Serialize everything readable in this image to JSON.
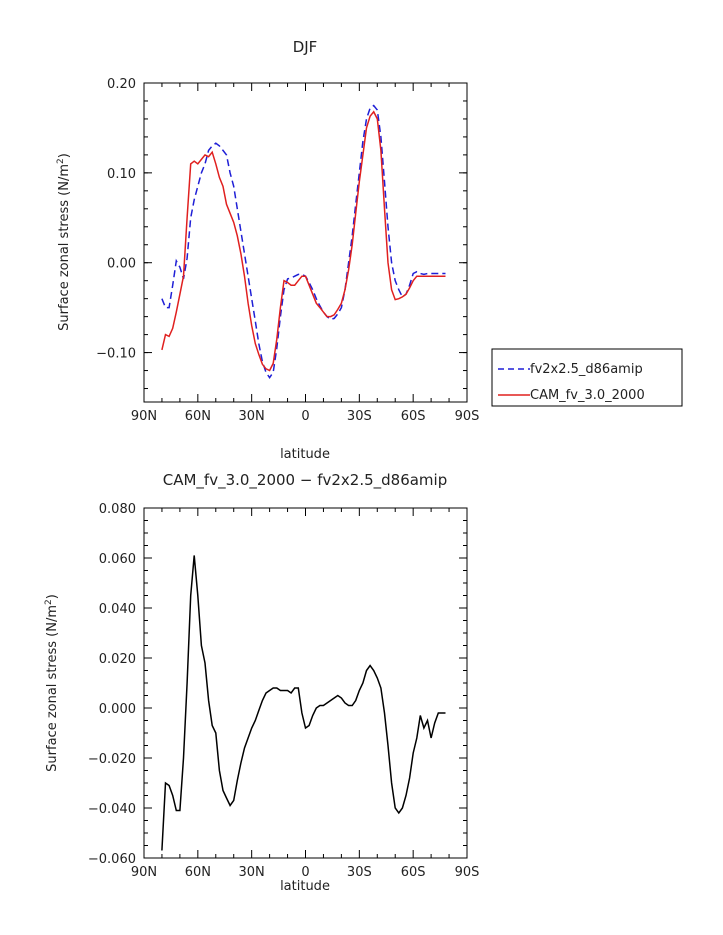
{
  "chart_data": [
    {
      "type": "line",
      "title": "DJF",
      "xlabel": "latitude",
      "ylabel": "Surface zonal stress (N/m",
      "ylabel_sup": "2",
      "ylabel_end": ")",
      "xlim": [
        90,
        -90
      ],
      "ylim": [
        -0.155,
        0.2
      ],
      "x_ticks": [
        {
          "value": 90,
          "label": "90N"
        },
        {
          "value": 60,
          "label": "60N"
        },
        {
          "value": 30,
          "label": "30N"
        },
        {
          "value": 0,
          "label": "0"
        },
        {
          "value": -30,
          "label": "30S"
        },
        {
          "value": -60,
          "label": "60S"
        },
        {
          "value": -90,
          "label": "90S"
        }
      ],
      "y_ticks": [
        {
          "value": 0.2,
          "label": "0.20"
        },
        {
          "value": 0.1,
          "label": "0.10"
        },
        {
          "value": 0.0,
          "label": "0.00"
        },
        {
          "value": -0.1,
          "label": "−0.10"
        }
      ],
      "legend_position": "right",
      "series": [
        {
          "name": "fv2x2.5_d86amip",
          "color": "#1f1fd6",
          "style": "dashed",
          "x": [
            80,
            78,
            76,
            74,
            72,
            70,
            68,
            66,
            64,
            62,
            60,
            58,
            56,
            54,
            52,
            50,
            48,
            46,
            44,
            42,
            40,
            38,
            36,
            34,
            32,
            30,
            28,
            26,
            24,
            22,
            20,
            18,
            16,
            14,
            12,
            10,
            8,
            6,
            4,
            2,
            0,
            -2,
            -4,
            -6,
            -8,
            -10,
            -12,
            -14,
            -16,
            -18,
            -20,
            -22,
            -24,
            -26,
            -28,
            -30,
            -32,
            -34,
            -36,
            -38,
            -40,
            -42,
            -44,
            -46,
            -48,
            -50,
            -52,
            -54,
            -56,
            -58,
            -60,
            -62,
            -64,
            -66,
            -68,
            -70,
            -72,
            -74,
            -76,
            -78
          ],
          "y": [
            -0.04,
            -0.05,
            -0.05,
            -0.025,
            0.002,
            -0.005,
            -0.018,
            0.005,
            0.05,
            0.07,
            0.085,
            0.1,
            0.11,
            0.125,
            0.13,
            0.133,
            0.13,
            0.125,
            0.12,
            0.1,
            0.085,
            0.06,
            0.035,
            0.01,
            -0.015,
            -0.04,
            -0.065,
            -0.09,
            -0.11,
            -0.122,
            -0.128,
            -0.122,
            -0.095,
            -0.06,
            -0.03,
            -0.018,
            -0.017,
            -0.015,
            -0.013,
            -0.013,
            -0.015,
            -0.022,
            -0.03,
            -0.04,
            -0.048,
            -0.055,
            -0.06,
            -0.063,
            -0.062,
            -0.057,
            -0.05,
            -0.03,
            0.0,
            0.03,
            0.065,
            0.1,
            0.135,
            0.16,
            0.172,
            0.175,
            0.17,
            0.14,
            0.09,
            0.04,
            0.0,
            -0.02,
            -0.03,
            -0.038,
            -0.035,
            -0.025,
            -0.012,
            -0.01,
            -0.012,
            -0.013,
            -0.012,
            -0.012,
            -0.012,
            -0.012,
            -0.012,
            -0.012
          ],
          "x_range": [
            80,
            -78
          ]
        },
        {
          "name": "CAM_fv_3.0_2000",
          "color": "#e0201f",
          "style": "solid",
          "x": [
            80,
            78,
            76,
            74,
            72,
            70,
            68,
            66,
            64,
            62,
            60,
            58,
            56,
            54,
            52,
            50,
            48,
            46,
            44,
            42,
            40,
            38,
            36,
            34,
            32,
            30,
            28,
            26,
            24,
            22,
            20,
            18,
            16,
            14,
            12,
            10,
            8,
            6,
            4,
            2,
            0,
            -2,
            -4,
            -6,
            -8,
            -10,
            -12,
            -14,
            -16,
            -18,
            -20,
            -22,
            -24,
            -26,
            -28,
            -30,
            -32,
            -34,
            -36,
            -38,
            -40,
            -42,
            -44,
            -46,
            -48,
            -50,
            -52,
            -54,
            -56,
            -58,
            -60,
            -62,
            -64,
            -66,
            -68,
            -70,
            -72,
            -74,
            -76,
            -78
          ],
          "y": [
            -0.097,
            -0.08,
            -0.082,
            -0.073,
            -0.055,
            -0.035,
            -0.015,
            0.05,
            0.11,
            0.113,
            0.11,
            0.115,
            0.12,
            0.118,
            0.123,
            0.11,
            0.095,
            0.085,
            0.065,
            0.055,
            0.045,
            0.03,
            0.01,
            -0.015,
            -0.045,
            -0.07,
            -0.09,
            -0.102,
            -0.113,
            -0.118,
            -0.12,
            -0.112,
            -0.085,
            -0.05,
            -0.02,
            -0.022,
            -0.025,
            -0.025,
            -0.02,
            -0.015,
            -0.015,
            -0.025,
            -0.035,
            -0.045,
            -0.05,
            -0.055,
            -0.06,
            -0.06,
            -0.058,
            -0.052,
            -0.045,
            -0.03,
            -0.008,
            0.02,
            0.055,
            0.09,
            0.12,
            0.15,
            0.163,
            0.168,
            0.16,
            0.125,
            0.06,
            0.0,
            -0.03,
            -0.041,
            -0.04,
            -0.038,
            -0.035,
            -0.028,
            -0.02,
            -0.015,
            -0.015,
            -0.015,
            -0.015,
            -0.015,
            -0.015,
            -0.015,
            -0.015,
            -0.015
          ]
        }
      ]
    },
    {
      "type": "line",
      "title": "CAM_fv_3.0_2000 − fv2x2.5_d86amip",
      "xlabel": "latitude",
      "ylabel": "Surface zonal stress (N/m",
      "ylabel_sup": "2",
      "ylabel_end": ")",
      "xlim": [
        90,
        -90
      ],
      "ylim": [
        -0.06,
        0.08
      ],
      "x_ticks": [
        {
          "value": 90,
          "label": "90N"
        },
        {
          "value": 60,
          "label": "60N"
        },
        {
          "value": 30,
          "label": "30N"
        },
        {
          "value": 0,
          "label": "0"
        },
        {
          "value": -30,
          "label": "30S"
        },
        {
          "value": -60,
          "label": "60S"
        },
        {
          "value": -90,
          "label": "90S"
        }
      ],
      "y_ticks": [
        {
          "value": 0.08,
          "label": "0.080"
        },
        {
          "value": 0.06,
          "label": "0.060"
        },
        {
          "value": 0.04,
          "label": "0.040"
        },
        {
          "value": 0.02,
          "label": "0.020"
        },
        {
          "value": 0.0,
          "label": "0.000"
        },
        {
          "value": -0.02,
          "label": "−0.020"
        },
        {
          "value": -0.04,
          "label": "−0.040"
        },
        {
          "value": -0.06,
          "label": "−0.060"
        }
      ],
      "series": [
        {
          "color": "#000000",
          "style": "solid",
          "x": [
            80,
            78,
            76,
            74,
            72,
            70,
            68,
            66,
            64,
            62,
            60,
            58,
            56,
            54,
            52,
            50,
            48,
            46,
            44,
            42,
            40,
            38,
            36,
            34,
            32,
            30,
            28,
            26,
            24,
            22,
            20,
            18,
            16,
            14,
            12,
            10,
            8,
            6,
            4,
            2,
            0,
            -2,
            -4,
            -6,
            -8,
            -10,
            -12,
            -14,
            -16,
            -18,
            -20,
            -22,
            -24,
            -26,
            -28,
            -30,
            -32,
            -34,
            -36,
            -38,
            -40,
            -42,
            -44,
            -46,
            -48,
            -50,
            -52,
            -54,
            -56,
            -58,
            -60,
            -62,
            -64,
            -66,
            -68,
            -70,
            -72,
            -74,
            -76,
            -78
          ],
          "y": [
            -0.057,
            -0.03,
            -0.031,
            -0.035,
            -0.041,
            -0.041,
            -0.02,
            0.01,
            0.045,
            0.061,
            0.045,
            0.025,
            0.018,
            0.003,
            -0.007,
            -0.01,
            -0.025,
            -0.033,
            -0.036,
            -0.039,
            -0.037,
            -0.029,
            -0.022,
            -0.016,
            -0.012,
            -0.008,
            -0.005,
            -0.001,
            0.003,
            0.006,
            0.007,
            0.008,
            0.008,
            0.007,
            0.007,
            0.007,
            0.006,
            0.008,
            0.008,
            -0.002,
            -0.008,
            -0.007,
            -0.003,
            0.0,
            0.001,
            0.001,
            0.002,
            0.003,
            0.004,
            0.005,
            0.004,
            0.002,
            0.001,
            0.001,
            0.003,
            0.007,
            0.01,
            0.015,
            0.017,
            0.015,
            0.012,
            0.008,
            -0.002,
            -0.015,
            -0.03,
            -0.04,
            -0.042,
            -0.04,
            -0.035,
            -0.028,
            -0.018,
            -0.012,
            -0.003,
            -0.008,
            -0.005,
            -0.012,
            -0.006,
            -0.002,
            -0.002,
            -0.002
          ]
        }
      ]
    }
  ]
}
